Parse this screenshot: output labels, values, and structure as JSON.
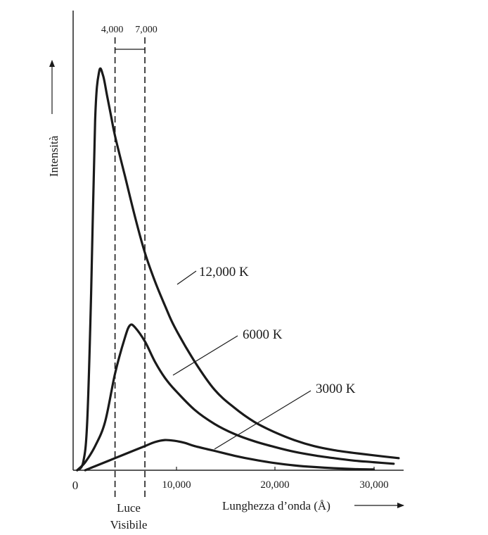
{
  "chart_data": {
    "type": "line",
    "xlabel": "Lunghezza d’onda (Å)",
    "ylabel": "Intensità",
    "x_ticks": [
      "0",
      "10,000",
      "20,000",
      "30,000"
    ],
    "xlim": [
      0,
      33000
    ],
    "ylim": [
      0,
      1
    ],
    "grid": false,
    "visible_band": {
      "start": 4000,
      "end": 7000,
      "start_label": "4,000",
      "end_label": "7,000",
      "label_line1": "Luce",
      "label_line2": "Visibile"
    },
    "series": [
      {
        "name": "12,000 K",
        "x": [
          200,
          800,
          1200,
          1600,
          2000,
          2400,
          2800,
          3200,
          3600,
          4000,
          5000,
          6000,
          7000,
          8000,
          9000,
          10000,
          12000,
          14000,
          16000,
          18000,
          20000,
          22000,
          24000,
          26000,
          28000,
          30000,
          32500
        ],
        "y": [
          0.0,
          0.02,
          0.12,
          0.44,
          0.87,
          0.99,
          0.98,
          0.93,
          0.88,
          0.83,
          0.73,
          0.63,
          0.54,
          0.47,
          0.41,
          0.355,
          0.27,
          0.2,
          0.155,
          0.12,
          0.095,
          0.075,
          0.06,
          0.05,
          0.043,
          0.037,
          0.03
        ]
      },
      {
        "name": "6000 K",
        "x": [
          200,
          1000,
          2000,
          3000,
          4000,
          5000,
          5500,
          6000,
          7000,
          8000,
          9000,
          10000,
          12000,
          14000,
          16000,
          18000,
          20000,
          22000,
          24000,
          26000,
          28000,
          30000,
          32000
        ],
        "y": [
          0.0,
          0.02,
          0.06,
          0.12,
          0.24,
          0.33,
          0.36,
          0.355,
          0.32,
          0.27,
          0.23,
          0.2,
          0.15,
          0.115,
          0.09,
          0.072,
          0.058,
          0.046,
          0.037,
          0.03,
          0.024,
          0.02,
          0.016
        ]
      },
      {
        "name": "3000 K",
        "x": [
          1000,
          2000,
          4000,
          6000,
          7000,
          8000,
          9000,
          10000,
          11000,
          12000,
          14000,
          16000,
          18000,
          20000,
          22000,
          24000,
          26000,
          28000,
          30000
        ],
        "y": [
          0.0,
          0.01,
          0.03,
          0.05,
          0.06,
          0.07,
          0.075,
          0.073,
          0.068,
          0.06,
          0.048,
          0.036,
          0.026,
          0.018,
          0.012,
          0.008,
          0.005,
          0.003,
          0.002
        ]
      }
    ]
  }
}
